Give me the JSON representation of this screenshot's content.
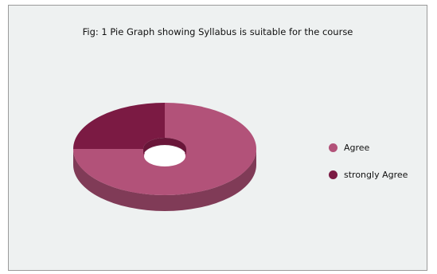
{
  "chart_data": {
    "type": "pie",
    "title": "Fig: 1 Pie Graph showing Syllabus is suitable for the course",
    "donut": true,
    "three_d": true,
    "legend_position": "right",
    "series": [
      {
        "name": "Agree",
        "value": 75,
        "color": "#b25279"
      },
      {
        "name": "strongly Agree",
        "value": 25,
        "color": "#7b1a43"
      }
    ]
  }
}
